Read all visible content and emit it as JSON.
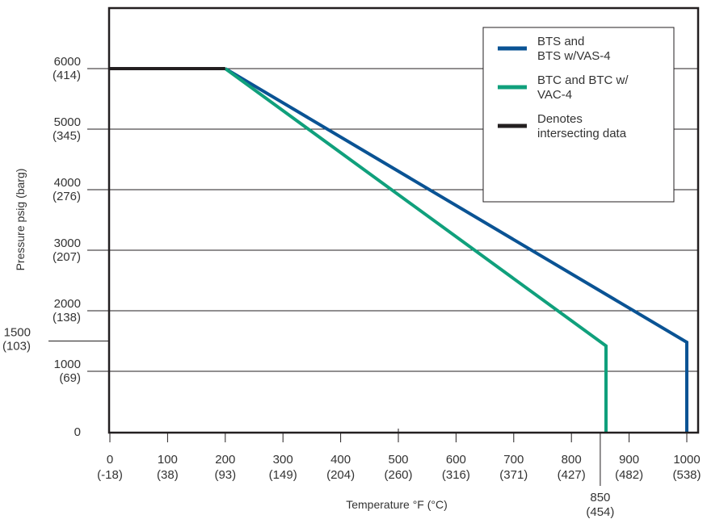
{
  "chart_data": {
    "type": "line",
    "xlabel": "Temperature °F (°C)",
    "ylabel": "Pressure psig (barg)",
    "xlim": [
      0,
      1000
    ],
    "ylim": [
      0,
      6000
    ],
    "grid": "horizontal",
    "legend_placement": "top-right",
    "x_ticks": [
      {
        "value": 0,
        "label": "0",
        "sub": "(-18)"
      },
      {
        "value": 100,
        "label": "100",
        "sub": "(38)"
      },
      {
        "value": 200,
        "label": "200",
        "sub": "(93)"
      },
      {
        "value": 300,
        "label": "300",
        "sub": "(149)"
      },
      {
        "value": 400,
        "label": "400",
        "sub": "(204)"
      },
      {
        "value": 500,
        "label": "500",
        "sub": "(260)"
      },
      {
        "value": 600,
        "label": "600",
        "sub": "(316)"
      },
      {
        "value": 700,
        "label": "700",
        "sub": "(371)"
      },
      {
        "value": 800,
        "label": "800",
        "sub": "(427)"
      },
      {
        "value": 900,
        "label": "900",
        "sub": "(482)"
      },
      {
        "value": 1000,
        "label": "1000",
        "sub": "(538)"
      }
    ],
    "x_extra_tick": {
      "value": 850,
      "label": "850",
      "sub": "(454)"
    },
    "y_ticks": [
      {
        "value": 0,
        "label": "0",
        "sub": ""
      },
      {
        "value": 1000,
        "label": "1000",
        "sub": "(69)"
      },
      {
        "value": 2000,
        "label": "2000",
        "sub": "(138)"
      },
      {
        "value": 3000,
        "label": "3000",
        "sub": "(207)"
      },
      {
        "value": 4000,
        "label": "4000",
        "sub": "(276)"
      },
      {
        "value": 5000,
        "label": "5000",
        "sub": "(345)"
      },
      {
        "value": 6000,
        "label": "6000",
        "sub": "(414)"
      }
    ],
    "y_extra_tick": {
      "value": 1500,
      "label": "1500",
      "sub": "(103)"
    },
    "series": [
      {
        "name": "BTS and BTS w/VAS-4",
        "legend_lines": [
          "BTS and",
          "BTS w/VAS-4"
        ],
        "color": "#0a5394",
        "points": [
          [
            200,
            6000
          ],
          [
            1000,
            1480
          ],
          [
            1000,
            0
          ]
        ]
      },
      {
        "name": "BTC and BTC w/ VAC-4",
        "legend_lines": [
          "BTC and BTC w/",
          "VAC-4"
        ],
        "color": "#10a07c",
        "points": [
          [
            200,
            6000
          ],
          [
            860,
            1420
          ],
          [
            860,
            0
          ]
        ]
      },
      {
        "name": "Denotes intersecting data",
        "legend_lines": [
          "Denotes",
          "intersecting data"
        ],
        "color": "#231f20",
        "points": [
          [
            0,
            6000
          ],
          [
            200,
            6000
          ]
        ]
      }
    ]
  }
}
